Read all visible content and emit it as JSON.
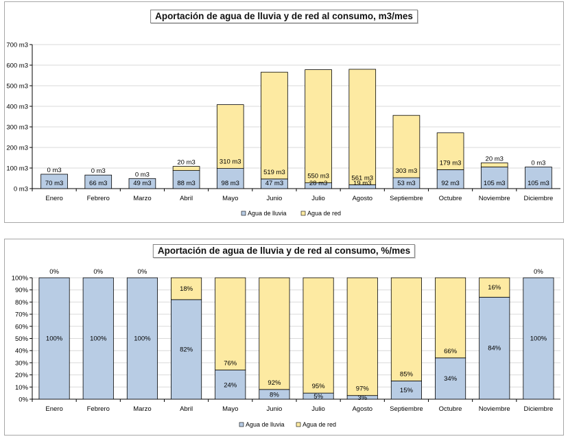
{
  "colors": {
    "rain": "#b8cce4",
    "grid": "#eef0f7",
    "axis": "#000000"
  },
  "chart_data": [
    {
      "type": "bar",
      "stacked": true,
      "title": "Aportación de agua de lluvia y de red al consumo, m3/mes",
      "xlabel": "",
      "ylabel": "",
      "ylim": [
        0,
        700
      ],
      "y_step": 100,
      "y_tick_suffix": " m3",
      "grid": true,
      "legend_placement": "bottom",
      "categories": [
        "Enero",
        "Febrero",
        "Marzo",
        "Abril",
        "Mayo",
        "Junio",
        "Julio",
        "Agosto",
        "Septiembre",
        "Octubre",
        "Noviembre",
        "Diciembre"
      ],
      "series": [
        {
          "name": "Agua de lluvia",
          "color": "#b8cce4",
          "values": [
            70,
            66,
            49,
            88,
            98,
            47,
            28,
            19,
            53,
            92,
            105,
            105
          ],
          "labels": [
            "70 m3",
            "66 m3",
            "49 m3",
            "88 m3",
            "98 m3",
            "47 m3",
            "28 m3",
            "19 m3",
            "53 m3",
            "92 m3",
            "105 m3",
            "105 m3"
          ]
        },
        {
          "name": "Agua de red",
          "color": "#fdeaa2",
          "values": [
            0,
            0,
            0,
            20,
            310,
            519,
            550,
            561,
            303,
            179,
            20,
            0
          ],
          "labels": [
            "0 m3",
            "0 m3",
            "0 m3",
            "20 m3",
            "310 m3",
            "519 m3",
            "550 m3",
            "561 m3",
            "303 m3",
            "179 m3",
            "20 m3",
            "0 m3"
          ]
        }
      ]
    },
    {
      "type": "bar",
      "stacked": true,
      "title": "Aportación de agua de lluvia y de red al consumo, %/mes",
      "xlabel": "",
      "ylabel": "",
      "ylim": [
        0,
        100
      ],
      "y_step": 10,
      "y_tick_suffix": "%",
      "grid": true,
      "legend_placement": "bottom",
      "categories": [
        "Enero",
        "Febrero",
        "Marzo",
        "Abril",
        "Mayo",
        "Junio",
        "Julio",
        "Agosto",
        "Septiembre",
        "Octubre",
        "Noviembre",
        "Diciembre"
      ],
      "series": [
        {
          "name": "Agua de lluvia",
          "color": "#b8cce4",
          "values": [
            100,
            100,
            100,
            82,
            24,
            8,
            5,
            3,
            15,
            34,
            84,
            100
          ],
          "labels": [
            "100%",
            "100%",
            "100%",
            "82%",
            "24%",
            "8%",
            "5%",
            "3%",
            "15%",
            "34%",
            "84%",
            "100%"
          ]
        },
        {
          "name": "Agua de red",
          "color": "#fdeaa2",
          "values": [
            0,
            0,
            0,
            18,
            76,
            92,
            95,
            97,
            85,
            66,
            16,
            0
          ],
          "labels": [
            "0%",
            "0%",
            "0%",
            "18%",
            "76%",
            "92%",
            "95%",
            "97%",
            "85%",
            "66%",
            "16%",
            "0%"
          ]
        }
      ]
    }
  ]
}
